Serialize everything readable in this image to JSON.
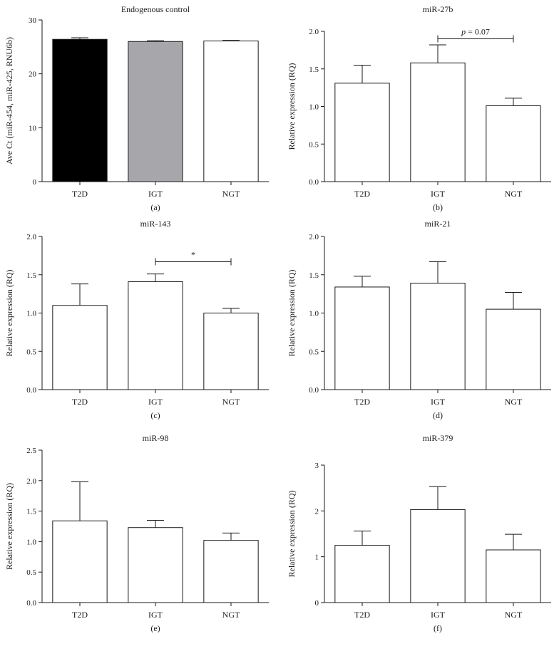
{
  "colors": {
    "axis": "#1a1a1a",
    "error_bar": "#1a1a1a",
    "bar_outline": "#1a1a1a"
  },
  "chart_data": [
    {
      "panel": "(a)",
      "type": "bar",
      "title": "Endogenous control",
      "ylabel": "Ave Ct (miR-454, miR-425, RNU6b)",
      "xlabel": "",
      "categories": [
        "T2D",
        "IGT",
        "NGT"
      ],
      "values": [
        26.4,
        26.0,
        26.1
      ],
      "errors": [
        0.3,
        0.15,
        0.1
      ],
      "bar_colors": [
        "#000000",
        "#a7a6ab",
        "#ffffff"
      ],
      "ylim": [
        0,
        30
      ],
      "yticks": [
        0,
        10,
        20,
        30
      ],
      "ytick_labels": [
        "0",
        "10",
        "20",
        "30"
      ],
      "grid": false,
      "annotation": null
    },
    {
      "panel": "(b)",
      "type": "bar",
      "title": "miR-27b",
      "ylabel": "Relative expression (RQ)",
      "xlabel": "",
      "categories": [
        "T2D",
        "IGT",
        "NGT"
      ],
      "values": [
        1.31,
        1.58,
        1.01
      ],
      "errors": [
        0.24,
        0.24,
        0.1
      ],
      "bar_colors": [
        "#ffffff",
        "#ffffff",
        "#ffffff"
      ],
      "ylim": [
        0,
        2
      ],
      "yticks": [
        0,
        0.5,
        1,
        1.5,
        2
      ],
      "ytick_labels": [
        "0.0",
        "0.5",
        "1.0",
        "1.5",
        "2.0"
      ],
      "grid": false,
      "annotation": {
        "from": 1,
        "to": 2,
        "y": 1.9,
        "prefix": "p",
        "text": " = 0.07"
      }
    },
    {
      "panel": "(c)",
      "type": "bar",
      "title": "miR-143",
      "ylabel": "Relative expression (RQ)",
      "xlabel": "",
      "categories": [
        "T2D",
        "IGT",
        "NGT"
      ],
      "values": [
        1.1,
        1.41,
        1.0
      ],
      "errors": [
        0.28,
        0.1,
        0.06
      ],
      "bar_colors": [
        "#ffffff",
        "#ffffff",
        "#ffffff"
      ],
      "ylim": [
        0,
        2
      ],
      "yticks": [
        0,
        0.5,
        1,
        1.5,
        2
      ],
      "ytick_labels": [
        "0.0",
        "0.5",
        "1.0",
        "1.5",
        "2.0"
      ],
      "grid": false,
      "annotation": {
        "from": 1,
        "to": 2,
        "y": 1.67,
        "prefix": "",
        "text": "*"
      }
    },
    {
      "panel": "(d)",
      "type": "bar",
      "title": "miR-21",
      "ylabel": "Relative expression (RQ)",
      "xlabel": "",
      "categories": [
        "T2D",
        "IGT",
        "NGT"
      ],
      "values": [
        1.34,
        1.39,
        1.05
      ],
      "errors": [
        0.14,
        0.28,
        0.22
      ],
      "bar_colors": [
        "#ffffff",
        "#ffffff",
        "#ffffff"
      ],
      "ylim": [
        0,
        2
      ],
      "yticks": [
        0,
        0.5,
        1,
        1.5,
        2
      ],
      "ytick_labels": [
        "0.0",
        "0.5",
        "1.0",
        "1.5",
        "2.0"
      ],
      "grid": false,
      "annotation": null
    },
    {
      "panel": "(e)",
      "type": "bar",
      "title": "miR-98",
      "ylabel": "Relative expression (RQ)",
      "xlabel": "",
      "categories": [
        "T2D",
        "IGT",
        "NGT"
      ],
      "values": [
        1.34,
        1.23,
        1.02
      ],
      "errors": [
        0.64,
        0.12,
        0.12
      ],
      "bar_colors": [
        "#ffffff",
        "#ffffff",
        "#ffffff"
      ],
      "ylim": [
        0,
        2.5
      ],
      "yticks": [
        0,
        0.5,
        1,
        1.5,
        2,
        2.5
      ],
      "ytick_labels": [
        "0.0",
        "0.5",
        "1.0",
        "1.5",
        "2.0",
        "2.5"
      ],
      "grid": false,
      "annotation": null
    },
    {
      "panel": "(f)",
      "type": "bar",
      "title": "miR-379",
      "ylabel": "Relative expression (RQ)",
      "xlabel": "",
      "categories": [
        "T2D",
        "IGT",
        "NGT"
      ],
      "values": [
        1.25,
        2.03,
        1.15
      ],
      "errors": [
        0.31,
        0.5,
        0.34
      ],
      "bar_colors": [
        "#ffffff",
        "#ffffff",
        "#ffffff"
      ],
      "ylim": [
        0,
        3
      ],
      "yticks": [
        0,
        1,
        2,
        3
      ],
      "ytick_labels": [
        "0",
        "1",
        "2",
        "3"
      ],
      "grid": false,
      "annotation": null
    }
  ]
}
